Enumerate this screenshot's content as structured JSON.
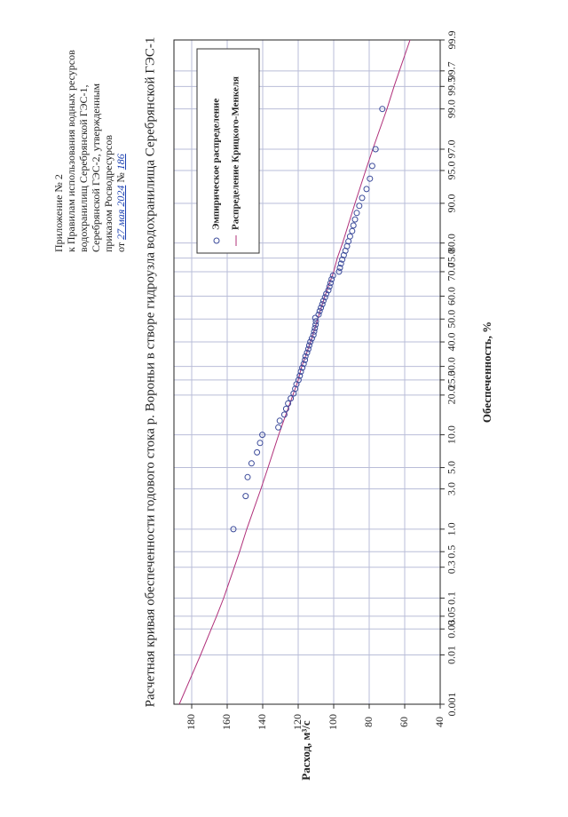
{
  "header": {
    "line1": "Приложение № 2",
    "line2": "к Правилам использования водных ресурсов",
    "line3": "водохранилищ Серебрянской ГЭС-1,",
    "line4": "Серебрянской ГЭС-2, утвержденным",
    "line5": "приказом Росводресурсов",
    "line6_prefix": "от",
    "line6_date": "27 мая 2024",
    "line6_no": "№",
    "line6_number": "186"
  },
  "chart_data": {
    "type": "scatter",
    "title": "Расчетная кривая обеспеченности годового стока р. Вороньи в створе гидроузла водохранилища Серебрянской ГЭС-1",
    "xlabel": "Обеспеченность, %",
    "ylabel": "Расход, м³/с",
    "x_scale": "probability",
    "ylim": [
      40,
      190
    ],
    "grid": true,
    "legend_position": "top-right",
    "x_tick_labels": [
      "0.001",
      "0.01",
      "0.03",
      "0.05",
      "0.1",
      "0.3",
      "0.5",
      "1.0",
      "3.0",
      "5.0",
      "10.0",
      "20.0",
      "25.0",
      "30.0",
      "40.0",
      "50.0",
      "60.0",
      "70.0",
      "75.0",
      "80.0",
      "90.0",
      "95.0",
      "97.0",
      "99.0",
      "99.5",
      "99.7",
      "99.9"
    ],
    "x_tick_values": [
      0.001,
      0.01,
      0.03,
      0.05,
      0.1,
      0.3,
      0.5,
      1,
      3,
      5,
      10,
      20,
      25,
      30,
      40,
      50,
      60,
      70,
      75,
      80,
      90,
      95,
      97,
      99,
      99.5,
      99.7,
      99.9
    ],
    "y_ticks": [
      40,
      60,
      80,
      100,
      120,
      140,
      160,
      180
    ],
    "series": [
      {
        "name": "Эмпирическое распределение",
        "marker": "circle",
        "color": "#3b4a9a",
        "x": [
          1.0,
          2.5,
          4.0,
          5.5,
          7.0,
          8.5,
          10.0,
          11.5,
          13.0,
          14.5,
          16.0,
          17.5,
          19.0,
          20.5,
          22.0,
          23.5,
          25.0,
          26.5,
          28.0,
          29.5,
          31.0,
          32.5,
          34.0,
          35.5,
          37.0,
          38.5,
          40.0,
          41.5,
          43.0,
          44.5,
          46.0,
          47.5,
          49.0,
          50.5,
          52.0,
          53.5,
          55.0,
          56.5,
          58.0,
          59.5,
          61.0,
          62.5,
          64.0,
          65.5,
          67.0,
          68.5,
          70.0,
          71.5,
          73.0,
          74.5,
          76.0,
          77.5,
          79.0,
          80.5,
          82.0,
          83.5,
          85.0,
          86.5,
          88.0,
          89.5,
          91.0,
          92.5,
          94.0,
          95.5,
          97.0,
          99.0
        ],
        "values": [
          156.5,
          149.6,
          148.5,
          146.3,
          143.2,
          141.5,
          140.2,
          131.2,
          130.4,
          127.8,
          126.8,
          125.7,
          124.2,
          122.6,
          121.7,
          121.0,
          119.8,
          119.1,
          118.5,
          117.7,
          116.9,
          116.2,
          115.9,
          115.0,
          114.3,
          113.8,
          113.2,
          112.3,
          111.4,
          111.0,
          110.6,
          110.2,
          110.0,
          110.4,
          108.5,
          107.9,
          107.2,
          106.4,
          105.8,
          104.9,
          104.2,
          103.0,
          102.4,
          101.8,
          101.2,
          100.4,
          97.0,
          96.5,
          95.9,
          95.2,
          94.3,
          93.4,
          92.5,
          91.7,
          90.8,
          89.6,
          88.9,
          88.0,
          87.0,
          85.6,
          84.0,
          81.5,
          79.6,
          78.3,
          76.4,
          72.6
        ]
      },
      {
        "name": "Распределение Крицкого-Менкеля",
        "marker": "line",
        "color": "#b0307a",
        "x": [
          0.001,
          0.01,
          0.03,
          0.05,
          0.1,
          0.3,
          0.5,
          1,
          3,
          5,
          10,
          20,
          25,
          30,
          40,
          50,
          60,
          70,
          75,
          80,
          90,
          95,
          97,
          99,
          99.5,
          99.7,
          99.9
        ],
        "values": [
          187,
          175,
          169,
          166,
          162,
          156,
          153,
          149,
          141,
          137,
          131,
          123,
          120,
          118,
          113,
          109,
          105,
          100,
          98,
          95,
          88,
          82,
          78,
          70,
          66,
          63,
          57
        ]
      }
    ]
  }
}
